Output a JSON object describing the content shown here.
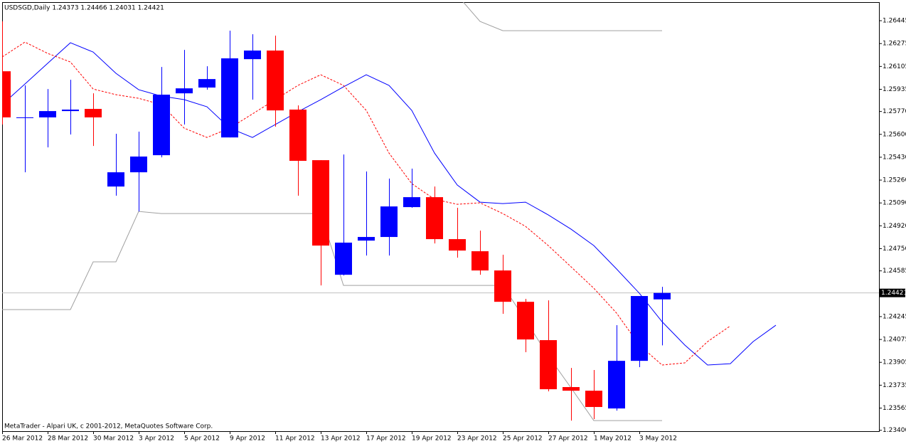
{
  "chart_data": {
    "type": "candlestick",
    "title": "USDSGD,Daily  1.24373 1.24466 1.24031 1.24421",
    "footer": "MetaTrader - Alpari UK, c 2001-2012, MetaQuotes Software Corp.",
    "categories": [
      "26 Mar 2012",
      null,
      "28 Mar 2012",
      null,
      "30 Mar 2012",
      null,
      "3 Apr 2012",
      null,
      "5 Apr 2012",
      null,
      "9 Apr 2012",
      null,
      "11 Apr 2012",
      null,
      "13 Apr 2012",
      null,
      "17 Apr 2012",
      null,
      "19 Apr 2012",
      null,
      "23 Apr 2012",
      null,
      "25 Apr 2012",
      null,
      "27 Apr 2012",
      null,
      "1 May 2012",
      null,
      "3 May 2012",
      null,
      null,
      null,
      null,
      null,
      null
    ],
    "open": [
      1.26069,
      1.25726,
      1.25726,
      1.25773,
      1.25789,
      1.25212,
      1.25318,
      1.25445,
      1.25905,
      1.25948,
      1.25577,
      1.26159,
      1.26223,
      1.25784,
      1.25408,
      1.24556,
      1.2481,
      1.24837,
      1.25059,
      1.25133,
      1.24821,
      1.24731,
      1.24588,
      1.24355,
      1.2407,
      1.23721,
      1.23694,
      1.23562,
      1.23916,
      1.24373,
      null,
      null,
      null,
      null,
      null
    ],
    "high": [
      1.2644,
      1.25964,
      1.25937,
      1.26006,
      1.25905,
      1.25604,
      1.2562,
      1.26101,
      1.26228,
      1.26106,
      1.26371,
      1.26344,
      1.26334,
      1.25815,
      1.25408,
      1.2545,
      1.25324,
      1.25271,
      1.25345,
      1.25212,
      1.25054,
      1.24884,
      1.24705,
      1.24377,
      1.24366,
      1.23863,
      1.23848,
      1.24181,
      1.24398,
      1.24466,
      null,
      null,
      null,
      null,
      null
    ],
    "low": [
      1.25673,
      1.25318,
      1.25503,
      1.25599,
      1.25514,
      1.25144,
      1.25027,
      1.25429,
      1.25673,
      1.25932,
      1.25577,
      1.25858,
      1.25657,
      1.25144,
      1.24477,
      1.24551,
      1.24699,
      1.24699,
      1.25054,
      1.24789,
      1.24683,
      1.24556,
      1.24266,
      1.2398,
      1.23689,
      1.23472,
      1.23483,
      1.23546,
      1.23869,
      1.24031,
      null,
      null,
      null,
      null,
      null
    ],
    "close": [
      1.25726,
      1.25726,
      1.25773,
      1.25784,
      1.25726,
      1.25318,
      1.25435,
      1.25895,
      1.25942,
      1.26011,
      1.26165,
      1.26223,
      1.25778,
      1.25403,
      1.24773,
      1.24795,
      1.24837,
      1.25064,
      1.25133,
      1.24821,
      1.24736,
      1.24588,
      1.24355,
      1.24075,
      1.23705,
      1.23694,
      1.23573,
      1.23916,
      1.24398,
      1.24421,
      null,
      null,
      null,
      null,
      null
    ],
    "up_color": "#0000ff",
    "down_color": "#ff0000",
    "series": [
      {
        "color": "#0000ff",
        "style": "solid",
        "values": [
          1.25821,
          1.25974,
          1.26128,
          1.26281,
          1.26212,
          1.26054,
          1.25932,
          1.25884,
          1.25858,
          1.25805,
          1.25646,
          1.25577,
          1.25673,
          1.25768,
          1.25858,
          1.25953,
          1.26043,
          1.25964,
          1.25778,
          1.25461,
          1.25223,
          1.25096,
          1.25085,
          1.25096,
          1.25001,
          1.24895,
          1.24773,
          1.24599,
          1.24419,
          1.24207,
          1.24033,
          1.23885,
          1.23895,
          1.24059,
          1.24181
        ]
      },
      {
        "color": "#ff0000",
        "style": "dashed",
        "values": [
          1.26175,
          1.26286,
          1.26202,
          1.26138,
          1.25937,
          1.25895,
          1.25868,
          1.25821,
          1.25646,
          1.25577,
          1.25646,
          1.25752,
          1.25858,
          1.25964,
          1.26043,
          1.25964,
          1.25778,
          1.25461,
          1.25234,
          1.25117,
          1.2508,
          1.25091,
          1.25011,
          1.24916,
          1.24773,
          1.24615,
          1.24456,
          1.24271,
          1.24033,
          1.23885,
          1.23901,
          1.24059,
          1.24176,
          null,
          null
        ]
      },
      {
        "color": "#a0a0a0",
        "style": "solid",
        "values": [
          1.24297,
          1.24297,
          1.24297,
          1.24297,
          1.24652,
          1.24652,
          1.25027,
          1.25011,
          1.25011,
          1.25011,
          1.25011,
          1.25011,
          1.25011,
          1.25011,
          1.25011,
          1.24477,
          1.24477,
          1.24477,
          1.24477,
          1.24477,
          1.24477,
          1.24477,
          1.24477,
          1.24218,
          1.23953,
          1.23715,
          1.23472,
          1.23472,
          1.23472,
          1.23472,
          null,
          null,
          null,
          null,
          null
        ]
      },
      {
        "color": "#a0a0a0",
        "style": "solid",
        "values": [
          null,
          null,
          null,
          null,
          null,
          null,
          null,
          null,
          null,
          null,
          null,
          null,
          null,
          null,
          null,
          null,
          null,
          null,
          null,
          null,
          1.26635,
          1.2644,
          1.26371,
          1.26371,
          1.26371,
          1.26371,
          1.26371,
          1.26371,
          1.26371,
          1.26371,
          null,
          null,
          null,
          null,
          null
        ]
      }
    ],
    "last_price": 1.24421,
    "last_price_color": "#c0c0c0",
    "ylim": [
      1.23393,
      1.26583
    ],
    "yticks": [
      1.26445,
      1.26275,
      1.26105,
      1.25935,
      {
        "value": 1.2577,
        "label": "1.25770"
      },
      {
        "value": 1.256,
        "label": "1.25600"
      },
      {
        "value": 1.2543,
        "label": "1.25430"
      },
      {
        "value": 1.2526,
        "label": "1.25260"
      },
      {
        "value": 1.2509,
        "label": "1.25090"
      },
      {
        "value": 1.2492,
        "label": "1.24920"
      },
      {
        "value": 1.2475,
        "label": "1.24750"
      },
      1.24585,
      1.24245,
      1.24075,
      1.23905,
      1.23735,
      1.23565,
      {
        "value": 1.234,
        "label": "1.23400"
      }
    ]
  }
}
